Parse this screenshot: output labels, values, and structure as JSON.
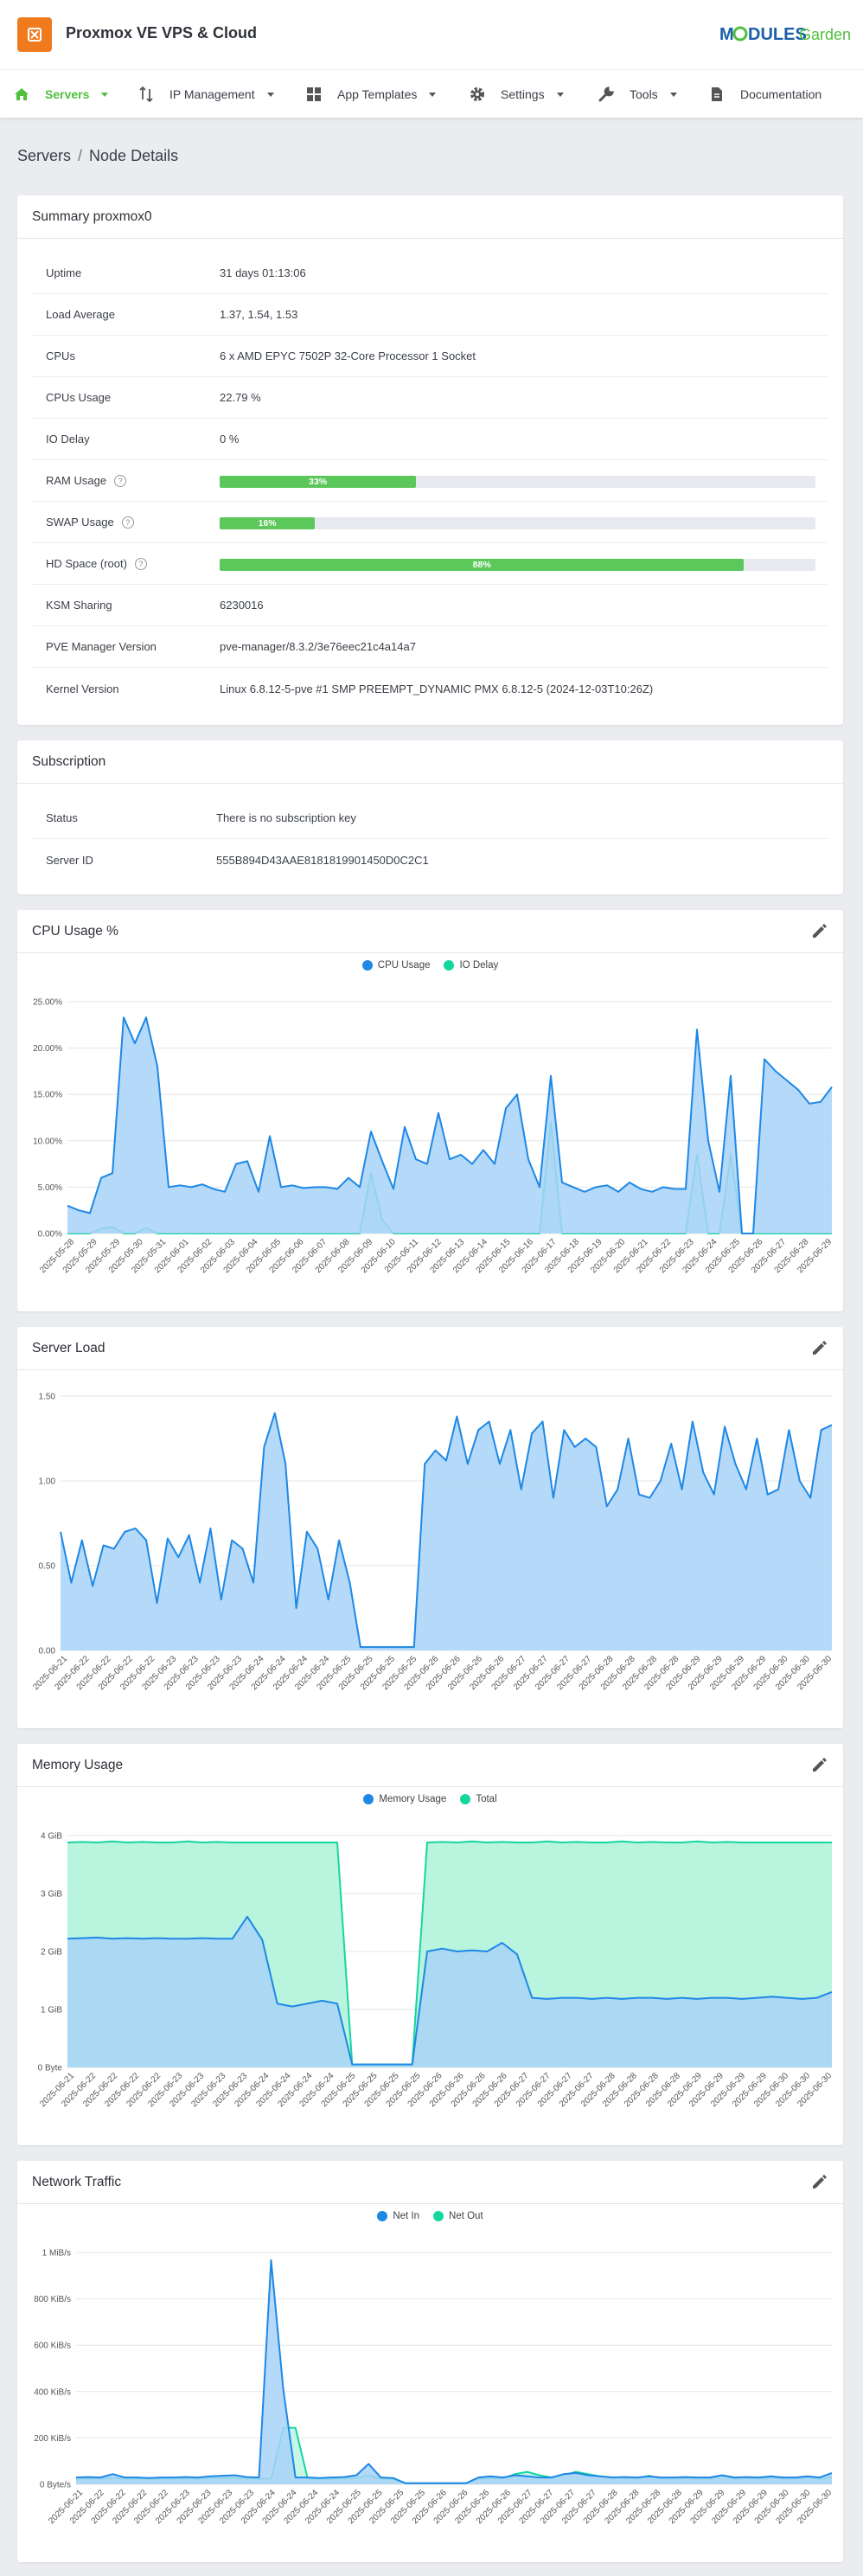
{
  "header": {
    "app_title": "Proxmox VE VPS & Cloud",
    "brand_part1": "M",
    "brand_part2": "DULES",
    "brand_part3": "Garden",
    "logo_color": "#f07b1f"
  },
  "nav": {
    "items": [
      {
        "label": "Servers",
        "icon": "home-icon",
        "active": true,
        "caret": true
      },
      {
        "label": "IP Management",
        "icon": "sort-arrows-icon",
        "caret": true
      },
      {
        "label": "App Templates",
        "icon": "grid-icon",
        "caret": true
      },
      {
        "label": "Settings",
        "icon": "gear-icon",
        "caret": true
      },
      {
        "label": "Tools",
        "icon": "wrench-icon",
        "caret": true
      },
      {
        "label": "Documentation",
        "icon": "document-icon",
        "caret": false
      }
    ]
  },
  "breadcrumb": {
    "root": "Servers",
    "separator": "/",
    "current": "Node Details"
  },
  "summary": {
    "title": "Summary proxmox0",
    "rows": [
      {
        "key": "Uptime",
        "value": "31 days 01:13:06"
      },
      {
        "key": "Load Average",
        "value": "1.37, 1.54, 1.53"
      },
      {
        "key": "CPUs",
        "value": "6 x AMD EPYC 7502P 32-Core Processor 1 Socket"
      },
      {
        "key": "CPUs Usage",
        "value": "22.79 %"
      },
      {
        "key": "IO Delay",
        "value": "0 %"
      },
      {
        "key": "RAM Usage",
        "bar": true,
        "percent": 33,
        "label": "33%",
        "help": "?"
      },
      {
        "key": "SWAP Usage",
        "bar": true,
        "percent": 16,
        "label": "16%",
        "help": "?"
      },
      {
        "key": "HD Space (root)",
        "bar": true,
        "percent": 88,
        "label": "88%",
        "help": "?"
      },
      {
        "key": "KSM Sharing",
        "value": "6230016"
      },
      {
        "key": "PVE Manager Version",
        "value": "pve-manager/8.3.2/3e76eec21c4a14a7"
      },
      {
        "key": "Kernel Version",
        "value": "Linux 6.8.12-5-pve #1 SMP PREEMPT_DYNAMIC PMX 6.8.12-5 (2024-12-03T10:26Z)"
      }
    ]
  },
  "subscription": {
    "title": "Subscription",
    "rows": [
      {
        "key": "Status",
        "value": "There is no subscription key"
      },
      {
        "key": "Server ID",
        "value": "555B894D43AAE8181819901450D0C2C1"
      }
    ]
  },
  "chart_data": [
    {
      "type": "area",
      "title": "CPU Usage %",
      "y_ticks": [
        "0.00%",
        "5.00%",
        "10.00%",
        "15.00%",
        "20.00%",
        "25.00%"
      ],
      "ylim": [
        0,
        25
      ],
      "x_labels": [
        "2025-05-28",
        "2025-05-29",
        "2025-05-29",
        "2025-05-30",
        "2025-05-31",
        "2025-06-01",
        "2025-06-02",
        "2025-06-03",
        "2025-06-04",
        "2025-06-05",
        "2025-06-06",
        "2025-06-07",
        "2025-06-08",
        "2025-06-09",
        "2025-06-10",
        "2025-06-11",
        "2025-06-12",
        "2025-06-13",
        "2025-06-14",
        "2025-06-15",
        "2025-06-16",
        "2025-06-17",
        "2025-06-18",
        "2025-06-19",
        "2025-06-20",
        "2025-06-21",
        "2025-06-22",
        "2025-06-23",
        "2025-06-24",
        "2025-06-25",
        "2025-06-26",
        "2025-06-27",
        "2025-06-28",
        "2025-06-29"
      ],
      "legend": true,
      "series": [
        {
          "name": "CPU Usage",
          "color": "#1e88e5",
          "fill": "#a8d2f7",
          "values": [
            3.0,
            2.5,
            2.2,
            6.0,
            6.5,
            23.3,
            20.5,
            23.3,
            18.0,
            5.0,
            5.2,
            5.0,
            5.3,
            4.8,
            4.5,
            7.5,
            7.8,
            4.5,
            10.5,
            5.0,
            5.2,
            4.9,
            5.0,
            5.0,
            4.8,
            6.0,
            5.0,
            11.0,
            7.8,
            4.8,
            11.5,
            8.0,
            7.5,
            13.0,
            8.0,
            8.5,
            7.5,
            9.0,
            7.5,
            13.5,
            15.0,
            8.0,
            5.0,
            17.0,
            5.5,
            5.0,
            4.5,
            5.0,
            5.2,
            4.5,
            5.5,
            4.8,
            4.5,
            5.0,
            4.8,
            4.8,
            22.0,
            10.0,
            4.5,
            17.0,
            0.0,
            0.0,
            18.8,
            17.5,
            16.5,
            15.5,
            14.0,
            14.2,
            15.8
          ]
        },
        {
          "name": "IO Delay",
          "color": "#16d6a0",
          "fill": "#bdf5e3",
          "values": [
            0,
            0,
            0,
            0.5,
            0.7,
            0,
            0,
            0.6,
            0,
            0,
            0,
            0,
            0,
            0,
            0,
            0,
            0,
            0,
            0,
            0,
            0,
            0,
            0,
            0,
            0,
            0,
            0,
            6.5,
            1.5,
            0,
            0,
            0,
            0,
            0,
            0,
            0,
            0,
            0,
            0,
            0,
            0,
            0,
            0,
            12.0,
            0,
            0,
            0,
            0,
            0,
            0,
            0,
            0,
            0,
            0,
            0,
            0,
            8.5,
            0,
            0,
            8.5,
            0,
            0,
            0,
            0,
            0,
            0,
            0,
            0,
            0
          ]
        }
      ]
    },
    {
      "type": "area",
      "title": "Server Load",
      "y_ticks": [
        "0.00",
        "0.50",
        "1.00",
        "1.50"
      ],
      "ylim": [
        0,
        1.5
      ],
      "x_labels": [
        "2025-06-21",
        "2025-06-22",
        "2025-06-22",
        "2025-06-22",
        "2025-06-22",
        "2025-06-23",
        "2025-06-23",
        "2025-06-23",
        "2025-06-23",
        "2025-06-24",
        "2025-06-24",
        "2025-06-24",
        "2025-06-24",
        "2025-06-25",
        "2025-06-25",
        "2025-06-25",
        "2025-06-25",
        "2025-06-26",
        "2025-06-26",
        "2025-06-26",
        "2025-06-26",
        "2025-06-27",
        "2025-06-27",
        "2025-06-27",
        "2025-06-27",
        "2025-06-28",
        "2025-06-28",
        "2025-06-28",
        "2025-06-28",
        "2025-06-29",
        "2025-06-29",
        "2025-06-29",
        "2025-06-29",
        "2025-06-30",
        "2025-06-30",
        "2025-06-30"
      ],
      "legend": false,
      "series": [
        {
          "name": "",
          "color": "#1e88e5",
          "fill": "#a8d2f7",
          "values": [
            0.7,
            0.4,
            0.65,
            0.38,
            0.62,
            0.6,
            0.7,
            0.72,
            0.65,
            0.28,
            0.66,
            0.55,
            0.68,
            0.4,
            0.72,
            0.3,
            0.65,
            0.6,
            0.4,
            1.2,
            1.4,
            1.1,
            0.25,
            0.7,
            0.6,
            0.3,
            0.65,
            0.4,
            0.02,
            0.02,
            0.02,
            0.02,
            0.02,
            0.02,
            1.1,
            1.18,
            1.12,
            1.38,
            1.1,
            1.3,
            1.35,
            1.1,
            1.3,
            0.95,
            1.28,
            1.35,
            0.9,
            1.3,
            1.2,
            1.25,
            1.2,
            0.85,
            0.95,
            1.25,
            0.92,
            0.9,
            1.0,
            1.22,
            0.95,
            1.35,
            1.05,
            0.92,
            1.32,
            1.1,
            0.95,
            1.25,
            0.92,
            0.95,
            1.3,
            1.0,
            0.9,
            1.3,
            1.33
          ]
        }
      ]
    },
    {
      "type": "area",
      "title": "Memory Usage",
      "y_ticks": [
        "0 Byte",
        "1 GiB",
        "2 GiB",
        "3 GiB",
        "4 GiB"
      ],
      "ylim": [
        0,
        4
      ],
      "x_labels": [
        "2025-06-21",
        "2025-06-22",
        "2025-06-22",
        "2025-06-22",
        "2025-06-22",
        "2025-06-23",
        "2025-06-23",
        "2025-06-23",
        "2025-06-23",
        "2025-06-24",
        "2025-06-24",
        "2025-06-24",
        "2025-06-24",
        "2025-06-25",
        "2025-06-25",
        "2025-06-25",
        "2025-06-25",
        "2025-06-26",
        "2025-06-26",
        "2025-06-26",
        "2025-06-26",
        "2025-06-27",
        "2025-06-27",
        "2025-06-27",
        "2025-06-27",
        "2025-06-28",
        "2025-06-28",
        "2025-06-28",
        "2025-06-28",
        "2025-06-29",
        "2025-06-29",
        "2025-06-29",
        "2025-06-29",
        "2025-06-30",
        "2025-06-30",
        "2025-06-30"
      ],
      "legend": true,
      "series": [
        {
          "name": "Memory Usage",
          "color": "#1e88e5",
          "fill": "#a8d2f7",
          "values": [
            2.22,
            2.23,
            2.24,
            2.22,
            2.23,
            2.22,
            2.23,
            2.22,
            2.22,
            2.23,
            2.22,
            2.22,
            2.6,
            2.2,
            1.1,
            1.05,
            1.1,
            1.15,
            1.1,
            0.05,
            0.05,
            0.05,
            0.05,
            0.05,
            2.0,
            2.05,
            2.0,
            2.02,
            2.0,
            2.15,
            1.95,
            1.2,
            1.18,
            1.2,
            1.2,
            1.18,
            1.2,
            1.18,
            1.2,
            1.2,
            1.18,
            1.2,
            1.18,
            1.2,
            1.2,
            1.18,
            1.2,
            1.22,
            1.2,
            1.18,
            1.2,
            1.3
          ]
        },
        {
          "name": "Total",
          "color": "#16d6a0",
          "fill": "#adf2d8",
          "values": [
            3.88,
            3.89,
            3.88,
            3.9,
            3.88,
            3.89,
            3.88,
            3.88,
            3.9,
            3.88,
            3.89,
            3.88,
            3.88,
            3.88,
            3.88,
            3.88,
            3.88,
            3.88,
            3.88,
            0.05,
            0.05,
            0.05,
            0.05,
            0.05,
            3.88,
            3.89,
            3.88,
            3.9,
            3.88,
            3.89,
            3.88,
            3.88,
            3.9,
            3.88,
            3.89,
            3.88,
            3.88,
            3.9,
            3.88,
            3.89,
            3.88,
            3.88,
            3.9,
            3.88,
            3.89,
            3.88,
            3.88,
            3.88,
            3.88,
            3.88,
            3.88,
            3.88
          ]
        }
      ]
    },
    {
      "type": "area",
      "title": "Network Traffic",
      "y_ticks": [
        "0 Byte/s",
        "200 KiB/s",
        "400 KiB/s",
        "600 KiB/s",
        "800 KiB/s",
        "1 MiB/s"
      ],
      "ylim": [
        0,
        1024
      ],
      "x_labels": [
        "2025-06-21",
        "2025-06-22",
        "2025-06-22",
        "2025-06-22",
        "2025-06-22",
        "2025-06-23",
        "2025-06-23",
        "2025-06-23",
        "2025-06-23",
        "2025-06-24",
        "2025-06-24",
        "2025-06-24",
        "2025-06-24",
        "2025-06-25",
        "2025-06-25",
        "2025-06-25",
        "2025-06-25",
        "2025-06-26",
        "2025-06-26",
        "2025-06-26",
        "2025-06-26",
        "2025-06-27",
        "2025-06-27",
        "2025-06-27",
        "2025-06-27",
        "2025-06-28",
        "2025-06-28",
        "2025-06-28",
        "2025-06-28",
        "2025-06-29",
        "2025-06-29",
        "2025-06-29",
        "2025-06-29",
        "2025-06-30",
        "2025-06-30",
        "2025-06-30"
      ],
      "legend": true,
      "series": [
        {
          "name": "Net In",
          "color": "#1e88e5",
          "fill": "#a8d2f7",
          "values": [
            30,
            32,
            30,
            45,
            30,
            30,
            28,
            30,
            30,
            32,
            30,
            35,
            38,
            40,
            32,
            30,
            990,
            420,
            30,
            30,
            28,
            30,
            32,
            40,
            90,
            30,
            28,
            5,
            5,
            5,
            5,
            5,
            5,
            30,
            35,
            30,
            40,
            35,
            30,
            30,
            45,
            50,
            40,
            35,
            30,
            32,
            30,
            35,
            30,
            30,
            32,
            30,
            30,
            40,
            30,
            32,
            30,
            35,
            30,
            30,
            35,
            30,
            50
          ]
        },
        {
          "name": "Net Out",
          "color": "#16d6a0",
          "fill": "#bdf5e3",
          "values": [
            25,
            26,
            25,
            28,
            25,
            25,
            24,
            25,
            25,
            26,
            25,
            27,
            28,
            28,
            26,
            25,
            25,
            250,
            250,
            25,
            24,
            25,
            26,
            28,
            40,
            25,
            24,
            5,
            5,
            5,
            5,
            5,
            5,
            25,
            28,
            25,
            45,
            55,
            40,
            30,
            40,
            55,
            45,
            35,
            30,
            28,
            25,
            38,
            25,
            25,
            28,
            25,
            25,
            38,
            25,
            28,
            25,
            30,
            25,
            25,
            30,
            25,
            30
          ]
        }
      ]
    }
  ]
}
